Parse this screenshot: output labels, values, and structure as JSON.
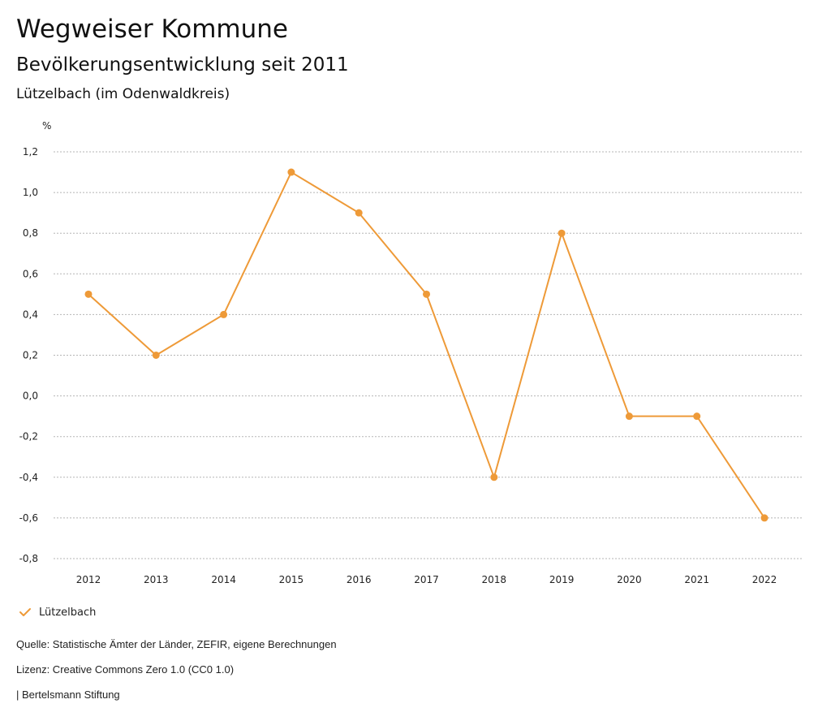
{
  "header": {
    "title": "Wegweiser Kommune",
    "subtitle": "Bevölkerungsentwicklung seit 2011",
    "region": "Lützelbach (im Odenwaldkreis)"
  },
  "legend": {
    "label": "Lützelbach",
    "color": "#ee9a38",
    "icon": "check-icon"
  },
  "footer": {
    "source": "Quelle: Statistische Ämter der Länder, ZEFIR, eigene Berechnungen",
    "license": "Lizenz: Creative Commons Zero 1.0 (CC0 1.0)",
    "publisher": "| Bertelsmann Stiftung"
  },
  "chart_data": {
    "type": "line",
    "ylabel": "%",
    "x": [
      "2012",
      "2013",
      "2014",
      "2015",
      "2016",
      "2017",
      "2018",
      "2019",
      "2020",
      "2021",
      "2022"
    ],
    "series": [
      {
        "name": "Lützelbach",
        "color": "#ee9a38",
        "values": [
          0.5,
          0.2,
          0.4,
          1.1,
          0.9,
          0.5,
          -0.4,
          0.8,
          -0.1,
          -0.1,
          -0.6
        ]
      }
    ],
    "ylim": [
      -0.8,
      1.2
    ],
    "yticks": [
      1.2,
      1.0,
      0.8,
      0.6,
      0.4,
      0.2,
      0.0,
      -0.2,
      -0.4,
      -0.6,
      -0.8
    ],
    "ytick_labels": [
      "1,2",
      "1,0",
      "0,8",
      "0,6",
      "0,4",
      "0,2",
      "0,0",
      "-0,2",
      "-0,4",
      "-0,6",
      "-0,8"
    ],
    "grid": true,
    "legend_position": "bottom-left"
  }
}
